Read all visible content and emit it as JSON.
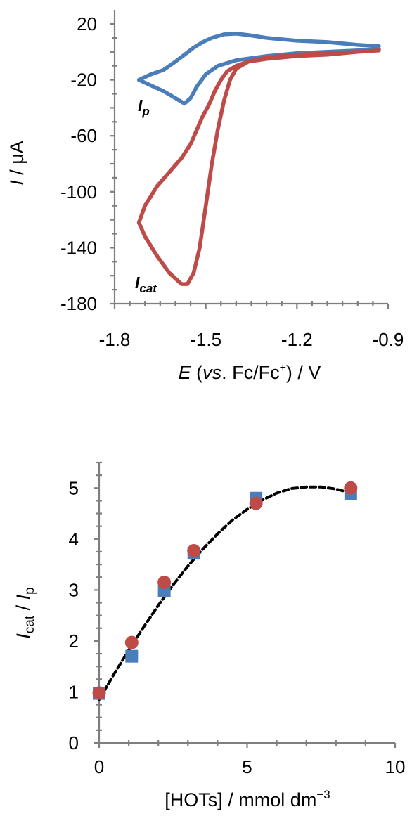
{
  "chart_data": [
    {
      "type": "line",
      "xlabel": {
        "main": "E",
        "middle": " (",
        "vs": "vs",
        "tail": ". Fc/Fc",
        "sup": "+",
        "end": ") / V"
      },
      "ylabel": {
        "italic": "I",
        "rest": " / μA"
      },
      "xlim": [
        -1.8,
        -0.9
      ],
      "ylim": [
        -180,
        20
      ],
      "xticks": [
        -1.8,
        -1.5,
        -1.2,
        -0.9
      ],
      "xtick_labels": [
        "-1.8",
        "-1.5",
        "-1.2",
        "-0.9"
      ],
      "yticks": [
        20,
        -20,
        -60,
        -100,
        -140,
        -180
      ],
      "ytick_labels": [
        "20",
        "-20",
        "-60",
        "-100",
        "-140",
        "-180"
      ],
      "grid": false,
      "colors": {
        "blue": "#4a7ebb",
        "red": "#be4b48"
      },
      "annotations": [
        {
          "main": "I",
          "sub": "p",
          "x": -1.73,
          "y": -40
        },
        {
          "main": "I",
          "sub": "cat",
          "x": -1.73,
          "y": -170
        }
      ],
      "series": [
        {
          "color": "#4a7ebb",
          "x": [
            -0.93,
            -1.0,
            -1.1,
            -1.2,
            -1.3,
            -1.36,
            -1.4,
            -1.44,
            -1.48,
            -1.51,
            -1.54,
            -1.57,
            -1.6,
            -1.64,
            -1.68,
            -1.72,
            -1.69,
            -1.64,
            -1.6,
            -1.57,
            -1.55,
            -1.53,
            -1.5,
            -1.46,
            -1.4,
            -1.3,
            -1.2,
            -1.1,
            -1.0,
            -0.93
          ],
          "y": [
            4,
            5,
            7,
            8,
            10,
            12,
            13,
            12.5,
            10,
            7,
            3,
            -2,
            -7,
            -13,
            -16,
            -20,
            -23,
            -28,
            -33,
            -37,
            -33,
            -25,
            -16,
            -10,
            -6,
            -3,
            -1,
            0,
            1,
            2
          ]
        },
        {
          "color": "#be4b48",
          "x": [
            -0.93,
            -1.0,
            -1.1,
            -1.2,
            -1.3,
            -1.36,
            -1.4,
            -1.42,
            -1.44,
            -1.46,
            -1.48,
            -1.5,
            -1.52,
            -1.54,
            -1.56,
            -1.58,
            -1.62,
            -1.66,
            -1.7,
            -1.72,
            -1.7,
            -1.66,
            -1.62,
            -1.58,
            -1.55,
            -1.53,
            -1.51,
            -1.49,
            -1.47,
            -1.45,
            -1.43,
            -1.4,
            -1.36,
            -1.3,
            -1.2,
            -1.1,
            -1.0,
            -0.93
          ],
          "y": [
            1,
            0,
            -1,
            -2,
            -4,
            -7,
            -12,
            -20,
            -35,
            -55,
            -80,
            -110,
            -140,
            -158,
            -166,
            -166,
            -158,
            -146,
            -132,
            -122,
            -110,
            -96,
            -86,
            -76,
            -66,
            -56,
            -46,
            -38,
            -28,
            -20,
            -14,
            -10,
            -7,
            -5,
            -3,
            -2,
            0,
            1
          ]
        }
      ]
    },
    {
      "type": "scatter",
      "xlabel": {
        "main": "[HOTs] / mmol dm",
        "sup": "−3"
      },
      "ylabel": {
        "italic1": "I",
        "sub1": "cat",
        "sep": " / ",
        "italic2": "I",
        "sub2": "p"
      },
      "xlim": [
        0,
        10
      ],
      "ylim": [
        0,
        5.5
      ],
      "xticks": [
        0,
        5,
        10
      ],
      "xtick_labels": [
        "0",
        "5",
        "10"
      ],
      "yticks": [
        0,
        1,
        2,
        3,
        4,
        5
      ],
      "ytick_labels": [
        "0",
        "1",
        "2",
        "3",
        "4",
        "5"
      ],
      "grid": false,
      "series": [
        {
          "marker": "square",
          "color": "#4a7ebb",
          "x": [
            0,
            1.1,
            2.2,
            3.2,
            5.3,
            8.5
          ],
          "y": [
            0.97,
            1.7,
            2.98,
            3.72,
            4.8,
            4.88
          ]
        },
        {
          "marker": "circle",
          "color": "#be4b48",
          "x": [
            0,
            1.1,
            2.2,
            3.2,
            5.3,
            8.5
          ],
          "y": [
            0.98,
            1.97,
            3.15,
            3.77,
            4.7,
            5.0
          ]
        }
      ],
      "fit": {
        "style": "dashed",
        "color": "#000000",
        "x": [
          0,
          0.5,
          1.0,
          1.5,
          2.0,
          2.5,
          3.0,
          3.5,
          4.0,
          4.5,
          5.0,
          5.5,
          6.0,
          6.5,
          7.0,
          7.5,
          8.0,
          8.5
        ],
        "y": [
          0.85,
          1.35,
          1.82,
          2.27,
          2.7,
          3.1,
          3.47,
          3.8,
          4.1,
          4.37,
          4.58,
          4.76,
          4.9,
          4.99,
          5.02,
          5.02,
          4.98,
          4.9
        ]
      }
    }
  ]
}
